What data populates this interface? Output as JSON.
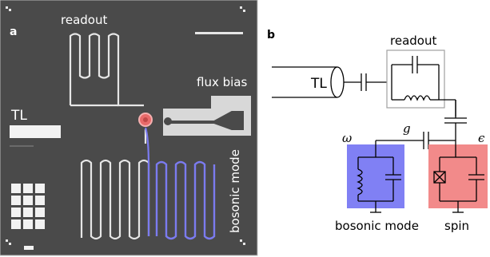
{
  "figure": {
    "panel_a": {
      "letter": "a",
      "labels": {
        "readout": "readout",
        "flux_bias": "flux bias",
        "tl": "TL",
        "bosonic_mode": "bosonic mode"
      }
    },
    "panel_b": {
      "letter": "b",
      "labels": {
        "readout": "readout",
        "tl": "TL",
        "coupling": "g",
        "omega": "ω",
        "epsilon": "ϵ",
        "bosonic_mode": "bosonic mode",
        "spin": "spin"
      }
    },
    "colors": {
      "chip_background": "#4a4a4a",
      "metal": "#e6e6e6",
      "bosonic_highlight": "#7b7bf0",
      "spin_highlight": "#f08080",
      "qubit_marker": "#e86a6a"
    }
  }
}
